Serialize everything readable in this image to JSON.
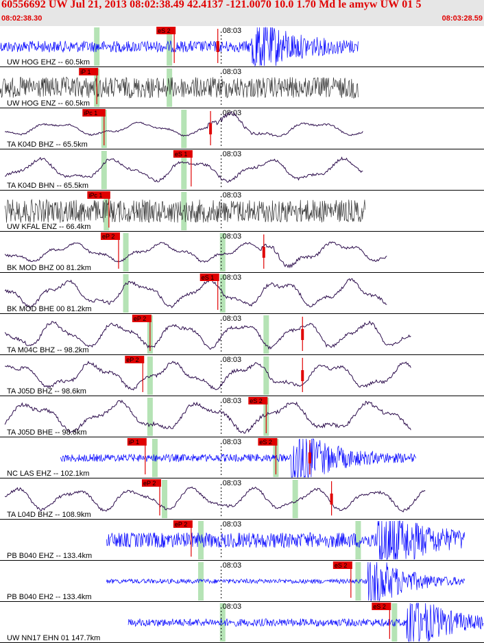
{
  "header": {
    "title": "60556692 UW Jul 21, 2013 08:02:38.49   42.4137 -121.0070 10.0 1.70 Md le amyw UW 01   5",
    "start_time": "08:02:38.30",
    "end_time": "08:03:28.59"
  },
  "minute_tick_label": "08:03",
  "colors": {
    "header_bg": "#e6e6e6",
    "header_text": "#e00000",
    "trace_blue": "#0000ff",
    "trace_gray": "#333333",
    "trace_purple": "#2a0a4a",
    "pick": "#e00000",
    "marker": "#b5e3b5"
  },
  "traces": [
    {
      "label": "UW HOG EHZ -- 60.5km",
      "color": "blue",
      "kind": "noise",
      "start": 0.0,
      "end": 0.74,
      "amp": 0.3,
      "burst": 0.52,
      "burst_amp": 2.0,
      "markers": [
        0.2,
        0.35
      ],
      "picks": [
        {
          "label": "eS 2",
          "pos": 0.36
        },
        {
          "label": "",
          "pos": 0.45
        }
      ]
    },
    {
      "label": "UW HOG ENZ -- 60.5km",
      "color": "gray",
      "kind": "noise",
      "start": 0.0,
      "end": 0.74,
      "amp": 0.55,
      "markers": [
        0.2,
        0.35
      ],
      "picks": [
        {
          "label": "iP 1",
          "pos": 0.2
        }
      ]
    },
    {
      "label": "TA K04D BHZ -- 65.5km",
      "color": "purple",
      "kind": "wave",
      "start": 0.01,
      "end": 0.75,
      "amp": 0.35,
      "burst": 0.43,
      "burst_amp": 1.4,
      "markers": [
        0.215,
        0.38
      ],
      "picks": [
        {
          "label": "iPc 1",
          "pos": 0.215
        },
        {
          "label": "",
          "pos": 0.435
        }
      ]
    },
    {
      "label": "TA K04D BHN -- 65.5km",
      "color": "purple",
      "kind": "wave",
      "start": 0.01,
      "end": 0.75,
      "amp": 0.6,
      "markers": [
        0.215,
        0.38
      ],
      "picks": [
        {
          "label": "eS 1",
          "pos": 0.395
        }
      ]
    },
    {
      "label": "UW KFAL ENZ -- 66.4km",
      "color": "gray",
      "kind": "noise",
      "start": 0.01,
      "end": 0.755,
      "amp": 0.6,
      "markers": [
        0.22,
        0.38
      ],
      "picks": [
        {
          "label": "iPc 1",
          "pos": 0.225
        }
      ]
    },
    {
      "label": "BK MOD BHZ 00 81.2km",
      "color": "purple",
      "kind": "wave",
      "start": 0.01,
      "end": 0.8,
      "amp": 0.5,
      "burst": 0.54,
      "burst_amp": 1.2,
      "markers": [
        0.26,
        0.46
      ],
      "picks": [
        {
          "label": "eP 2",
          "pos": 0.245
        },
        {
          "label": "",
          "pos": 0.545
        }
      ]
    },
    {
      "label": "BK MOD BHE 00 81.2km",
      "color": "purple",
      "kind": "wave",
      "start": 0.01,
      "end": 0.8,
      "amp": 0.7,
      "markers": [
        0.26,
        0.46
      ],
      "picks": [
        {
          "label": "eS 1",
          "pos": 0.45
        }
      ]
    },
    {
      "label": "TA M04C BHZ -- 98.2km",
      "color": "purple",
      "kind": "wave",
      "start": 0.01,
      "end": 0.85,
      "amp": 0.7,
      "markers": [
        0.31,
        0.55
      ],
      "picks": [
        {
          "label": "eP 2",
          "pos": 0.31
        },
        {
          "label": "",
          "pos": 0.625
        }
      ]
    },
    {
      "label": "TA J05D BHZ -- 98.6km",
      "color": "purple",
      "kind": "wave",
      "start": 0.01,
      "end": 0.85,
      "amp": 0.7,
      "markers": [
        0.31,
        0.55
      ],
      "picks": [
        {
          "label": "eP 2",
          "pos": 0.295
        },
        {
          "label": "",
          "pos": 0.625
        }
      ]
    },
    {
      "label": "TA J05D BHE -- 98.6km",
      "color": "purple",
      "kind": "wave",
      "start": 0.01,
      "end": 0.85,
      "amp": 0.8,
      "markers": [
        0.31,
        0.55
      ],
      "picks": [
        {
          "label": "eS 2",
          "pos": 0.55
        }
      ]
    },
    {
      "label": "NC LAS EHZ -- 102.1km",
      "color": "blue",
      "kind": "noise",
      "start": 0.125,
      "end": 0.86,
      "amp": 0.2,
      "burst": 0.6,
      "burst_amp": 2.2,
      "markers": [
        0.32,
        0.57
      ],
      "picks": [
        {
          "label": "iP 1",
          "pos": 0.3
        },
        {
          "label": "eS 2",
          "pos": 0.57
        },
        {
          "label": "",
          "pos": 0.64
        }
      ]
    },
    {
      "label": "TA L04D BHZ -- 108.9km",
      "color": "purple",
      "kind": "wave",
      "start": 0.01,
      "end": 0.88,
      "amp": 0.6,
      "markers": [
        0.34,
        0.61
      ],
      "picks": [
        {
          "label": "eP 2",
          "pos": 0.33
        },
        {
          "label": "",
          "pos": 0.685
        }
      ]
    },
    {
      "label": "PB B040 EHZ -- 133.4km",
      "color": "blue",
      "kind": "noise",
      "start": 0.22,
      "end": 0.96,
      "amp": 0.4,
      "burst": 0.78,
      "burst_amp": 2.4,
      "markers": [
        0.415,
        0.74
      ],
      "picks": [
        {
          "label": "eP 2",
          "pos": 0.395
        }
      ]
    },
    {
      "label": "PB B040 EH2 -- 133.4km",
      "color": "blue",
      "kind": "noise",
      "start": 0.22,
      "end": 0.96,
      "amp": 0.12,
      "burst": 0.76,
      "burst_amp": 1.8,
      "markers": [
        0.415,
        0.74
      ],
      "picks": [
        {
          "label": "eS 2",
          "pos": 0.725
        }
      ]
    },
    {
      "label": "UW NN17 EHN 01 147.7km",
      "color": "blue",
      "kind": "noise",
      "start": 0.265,
      "end": 1.0,
      "amp": 0.2,
      "burst": 0.84,
      "burst_amp": 2.0,
      "markers": [
        0.46,
        0.815
      ],
      "picks": [
        {
          "label": "eS 2",
          "pos": 0.805
        }
      ]
    }
  ]
}
